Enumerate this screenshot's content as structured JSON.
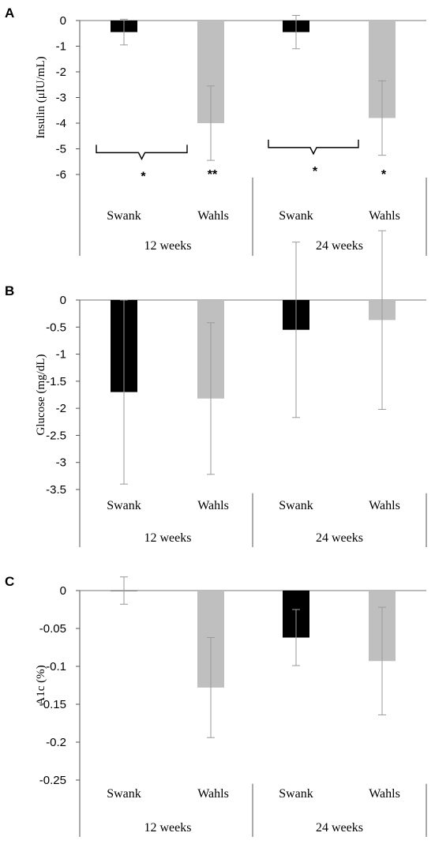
{
  "chart_data": [
    {
      "type": "bar",
      "panel": "A",
      "ylabel": "Insulin (μIU/mL)",
      "ylim": [
        -6,
        0
      ],
      "yticks": [
        "0",
        "-1",
        "-2",
        "-3",
        "-4",
        "-5",
        "-6"
      ],
      "ytick_values": [
        0,
        -1,
        -2,
        -3,
        -4,
        -5,
        -6
      ],
      "groups": [
        "12 weeks",
        "24 weeks"
      ],
      "categories": [
        "Swank",
        "Wahls",
        "Swank",
        "Wahls"
      ],
      "values": [
        -0.45,
        -4.0,
        -0.45,
        -3.8
      ],
      "error": [
        0.5,
        1.45,
        0.65,
        1.45
      ],
      "colors": [
        "#000000",
        "#bfbfbf",
        "#000000",
        "#bfbfbf"
      ],
      "significance": [
        {
          "group": 0,
          "bracket": true,
          "label": "*",
          "y": -5.15
        },
        {
          "bar": 1,
          "label": "**",
          "y": -6.0
        },
        {
          "group": 1,
          "bracket": true,
          "label": "*",
          "y": -4.95
        },
        {
          "bar": 3,
          "label": "*",
          "y": -6.0
        }
      ]
    },
    {
      "type": "bar",
      "panel": "B",
      "ylabel": "Glucose (mg/dL)",
      "ylim": [
        -3.5,
        0
      ],
      "yticks": [
        "0",
        "-0.5",
        "-1",
        "-1.5",
        "-2",
        "-2.5",
        "-3",
        "-3.5"
      ],
      "ytick_values": [
        0,
        -0.5,
        -1,
        -1.5,
        -2,
        -2.5,
        -3,
        -3.5
      ],
      "groups": [
        "12 weeks",
        "24 weeks"
      ],
      "categories": [
        "Swank",
        "Wahls",
        "Swank",
        "Wahls"
      ],
      "values": [
        -1.7,
        -1.82,
        -0.55,
        -0.37
      ],
      "error": [
        1.7,
        1.4,
        1.62,
        1.65
      ],
      "colors": [
        "#000000",
        "#bfbfbf",
        "#000000",
        "#bfbfbf"
      ],
      "significance": []
    },
    {
      "type": "bar",
      "panel": "C",
      "ylabel": "A1c (%)",
      "ylim": [
        -0.25,
        0
      ],
      "yticks": [
        "0",
        "-0.05",
        "-0.1",
        "-0.15",
        "-0.2",
        "-0.25"
      ],
      "ytick_values": [
        0,
        -0.05,
        -0.1,
        -0.15,
        -0.2,
        -0.25
      ],
      "groups": [
        "12 weeks",
        "24 weeks"
      ],
      "categories": [
        "Swank",
        "Wahls",
        "Swank",
        "Wahls"
      ],
      "values": [
        0.0,
        -0.128,
        -0.062,
        -0.093
      ],
      "error": [
        0.018,
        0.066,
        0.037,
        0.071
      ],
      "colors": [
        "#000000",
        "#bfbfbf",
        "#000000",
        "#bfbfbf"
      ],
      "significance": []
    }
  ]
}
